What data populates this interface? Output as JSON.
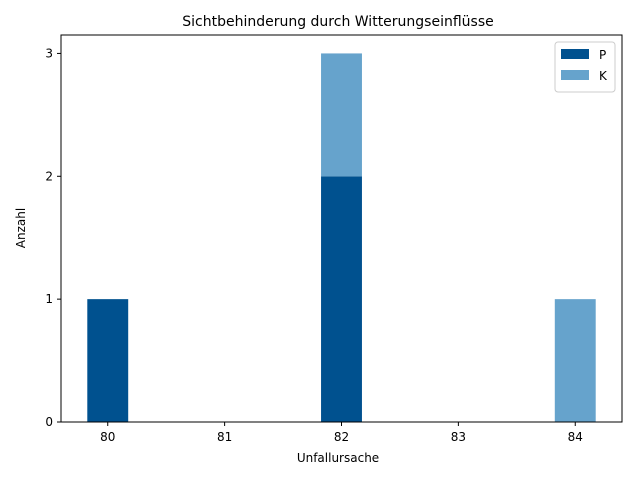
{
  "chart_data": {
    "type": "bar",
    "stacked": true,
    "title": "Sichtbehinderung durch Witterungseinflüsse",
    "xlabel": "Unfallursache",
    "ylabel": "Anzahl",
    "categories": [
      "80",
      "82",
      "84"
    ],
    "x_values": [
      80,
      82,
      84
    ],
    "xticks": [
      80,
      81,
      82,
      83,
      84
    ],
    "xtick_labels": [
      "80",
      "81",
      "82",
      "83",
      "84"
    ],
    "yticks": [
      0,
      1,
      2,
      3
    ],
    "ytick_labels": [
      "0",
      "1",
      "2",
      "3"
    ],
    "xlim": [
      79.6,
      84.4
    ],
    "ylim": [
      0,
      3.15
    ],
    "bar_width": 0.35,
    "series": [
      {
        "name": "P",
        "color": "#00518f",
        "values": [
          1,
          2,
          0
        ]
      },
      {
        "name": "K",
        "color": "#66a3cc",
        "values": [
          0,
          1,
          1
        ]
      }
    ],
    "legend_position": "top-right"
  }
}
